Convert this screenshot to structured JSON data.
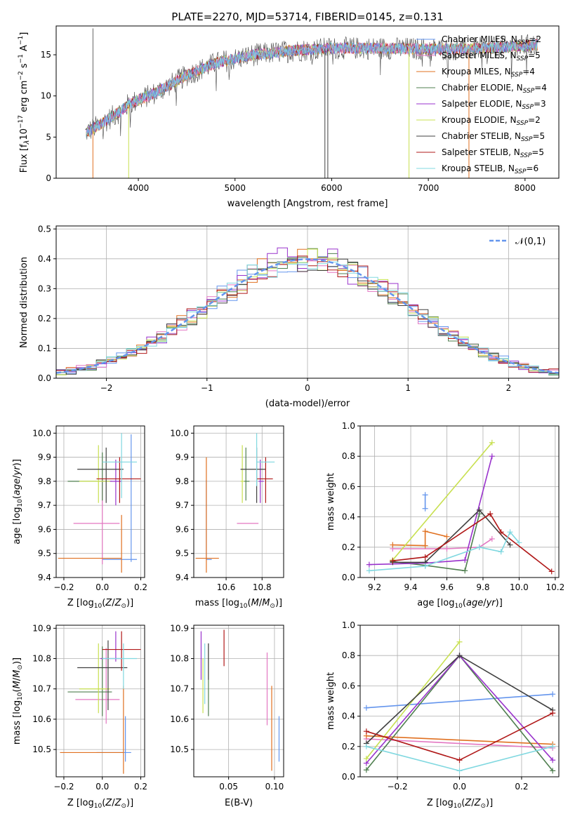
{
  "figure_title": "PLATE=2270, MJD=53714, FIBERID=0145, z=0.131",
  "legend_labels": [
    "Chabrier MILES, N_SSP=2",
    "Salpeter MILES, N_SSP=5",
    "Kroupa MILES, N_SSP=4",
    "Chabrier ELODIE, N_SSP=4",
    "Salpeter ELODIE, N_SSP=3",
    "Kroupa ELODIE, N_SSP=2",
    "Chabrier STELIB, N_SSP=5",
    "Salpeter STELIB, N_SSP=5",
    "Kroupa STELIB, N_SSP=6"
  ],
  "colors": [
    "#6495ed",
    "#e377c2",
    "#e07020",
    "#4f7f4f",
    "#9932cc",
    "#c8e050",
    "#404040",
    "#b01818",
    "#80d8e0"
  ],
  "chart_data": [
    {
      "id": "spectrum",
      "type": "line",
      "xlabel": "wavelength [Angstrom, rest frame]",
      "ylabel": "Flux [f_λ 10^-17 erg cm^-2 s^-1 A^-1]",
      "xlim": [
        3150,
        8350
      ],
      "ylim": [
        0,
        18.5
      ],
      "xticks": [
        4000,
        5000,
        6000,
        7000,
        8000
      ],
      "yticks": [
        0,
        5,
        10,
        15
      ],
      "continuum": {
        "x": [
          3450,
          3600,
          3800,
          3900,
          4000,
          4200,
          4500,
          4800,
          5200,
          5600,
          6000,
          6500,
          7000,
          7400,
          7800,
          8100
        ],
        "y": [
          5.5,
          6.5,
          8.0,
          9.0,
          9.5,
          10.5,
          12.5,
          14.0,
          15.0,
          15.5,
          15.8,
          15.8,
          15.7,
          15.7,
          15.9,
          16.2
        ]
      },
      "vertical_drops": [
        {
          "x": 3530,
          "series": 2
        },
        {
          "x": 3900,
          "series": 5
        },
        {
          "x": 6800,
          "series": 5
        },
        {
          "x": 7420,
          "series": 2
        },
        {
          "x": 5930,
          "series": 6
        },
        {
          "x": 5960,
          "series": 6
        }
      ],
      "spike": {
        "x": 3530,
        "y": 18.2
      },
      "legend": "upper-right"
    },
    {
      "id": "residual-histogram",
      "type": "line",
      "xlabel": "(data-model)/error",
      "ylabel": "Normed distribution",
      "xlim": [
        -2.5,
        2.5
      ],
      "ylim": [
        0,
        0.51
      ],
      "xticks": [
        -2,
        -1,
        0,
        1,
        2
      ],
      "yticks": [
        0.0,
        0.1,
        0.2,
        0.3,
        0.4,
        0.5
      ],
      "bin_width": 0.1,
      "grid": true,
      "legend_entries": [
        "𝒩(0,1)"
      ],
      "legend": "upper-right"
    },
    {
      "id": "age-vs-metallicity",
      "type": "scatter",
      "xlabel": "Z [log10(Z/Z⊙)]",
      "ylabel": "age [log10(age/yr)]",
      "xlim": [
        -0.24,
        0.22
      ],
      "ylim": [
        9.4,
        10.03
      ],
      "xticks": [
        -0.2,
        0.0,
        0.2
      ],
      "yticks": [
        9.4,
        9.5,
        9.6,
        9.7,
        9.8,
        9.9,
        10.0
      ],
      "points": [
        {
          "x": 0.15,
          "y": 9.475,
          "xerr": [
            0.15,
            0.03
          ],
          "yerr": [
            0.01,
            0.52
          ],
          "series": 0
        },
        {
          "x": 0.0,
          "y": 9.625,
          "xerr": [
            0.15,
            0.09
          ],
          "yerr": [
            0.17,
            0.18
          ],
          "series": 1
        },
        {
          "x": 0.1,
          "y": 9.48,
          "xerr": [
            0.33,
            0.0
          ],
          "yerr": [
            0.06,
            0.18
          ],
          "series": 2
        },
        {
          "x": 0.0,
          "y": 9.8,
          "xerr": [
            0.18,
            0.05
          ],
          "yerr": [
            0.08,
            0.12
          ],
          "series": 3
        },
        {
          "x": 0.07,
          "y": 9.8,
          "xerr": [
            0.08,
            0.03
          ],
          "yerr": [
            0.1,
            0.09
          ],
          "series": 4
        },
        {
          "x": -0.02,
          "y": 9.8,
          "xerr": [
            0.1,
            0.06
          ],
          "yerr": [
            0.09,
            0.15
          ],
          "series": 5
        },
        {
          "x": 0.02,
          "y": 9.85,
          "xerr": [
            0.15,
            0.09
          ],
          "yerr": [
            0.14,
            0.09
          ],
          "series": 6
        },
        {
          "x": 0.09,
          "y": 9.81,
          "xerr": [
            0.12,
            0.11
          ],
          "yerr": [
            0.1,
            0.09
          ],
          "series": 7
        },
        {
          "x": 0.1,
          "y": 9.88,
          "xerr": [
            0.1,
            0.08
          ],
          "yerr": [
            0.15,
            0.12
          ],
          "series": 8
        }
      ],
      "grid": true
    },
    {
      "id": "age-vs-mass",
      "type": "scatter",
      "xlabel": "mass [log10(M/M⊙)]",
      "ylabel": "",
      "xlim": [
        10.42,
        10.92
      ],
      "ylim": [
        9.4,
        10.03
      ],
      "xticks": [
        10.6,
        10.8
      ],
      "yticks": [
        9.4,
        9.5,
        9.6,
        9.7,
        9.8,
        9.9,
        10.0
      ],
      "points": [
        {
          "x": 10.49,
          "y": 9.475,
          "xerr": [
            0.0,
            0.03
          ],
          "yerr": [
            0.0,
            0.33
          ],
          "series": 0
        },
        {
          "x": 10.71,
          "y": 9.625,
          "xerr": [
            0.05,
            0.07
          ],
          "yerr": [
            0.0,
            0.0
          ],
          "series": 1
        },
        {
          "x": 10.49,
          "y": 9.48,
          "xerr": [
            0.06,
            0.07
          ],
          "yerr": [
            0.06,
            0.42
          ],
          "series": 2
        },
        {
          "x": 10.71,
          "y": 9.8,
          "xerr": [
            0.01,
            0.02
          ],
          "yerr": [
            0.08,
            0.14
          ],
          "series": 3
        },
        {
          "x": 10.79,
          "y": 9.8,
          "xerr": [
            0.01,
            0.02
          ],
          "yerr": [
            0.09,
            0.09
          ],
          "series": 4
        },
        {
          "x": 10.69,
          "y": 9.8,
          "xerr": [
            0.01,
            0.01
          ],
          "yerr": [
            0.09,
            0.15
          ],
          "series": 5
        },
        {
          "x": 10.77,
          "y": 9.85,
          "xerr": [
            0.09,
            0.05
          ],
          "yerr": [
            0.14,
            0.09
          ],
          "series": 6
        },
        {
          "x": 10.82,
          "y": 9.81,
          "xerr": [
            0.05,
            0.04
          ],
          "yerr": [
            0.1,
            0.09
          ],
          "series": 7
        },
        {
          "x": 10.77,
          "y": 9.88,
          "xerr": [
            0.0,
            0.1
          ],
          "yerr": [
            0.1,
            0.12
          ],
          "series": 8
        }
      ],
      "grid": true
    },
    {
      "id": "mass-weight-vs-age",
      "type": "line",
      "xlabel": "age [log10(age/yr)]",
      "ylabel": "mass weight",
      "xlim": [
        9.12,
        10.22
      ],
      "ylim": [
        0,
        1.0
      ],
      "xticks": [
        9.2,
        9.4,
        9.6,
        9.8,
        10.0,
        10.2
      ],
      "yticks": [
        0.0,
        0.2,
        0.4,
        0.6,
        0.8,
        1.0
      ],
      "series": [
        {
          "x": [
            9.48,
            9.48
          ],
          "y": [
            0.455,
            0.545
          ],
          "series": 0
        },
        {
          "x": [
            9.3,
            9.6,
            9.78,
            9.85
          ],
          "y": [
            0.19,
            0.19,
            0.2,
            0.255
          ],
          "series": 1
        },
        {
          "x": [
            9.3,
            9.48,
            9.48,
            9.6
          ],
          "y": [
            0.215,
            0.21,
            0.305,
            0.27
          ],
          "series": 2
        },
        {
          "x": [
            9.3,
            9.48,
            9.7,
            9.78
          ],
          "y": [
            0.105,
            0.08,
            0.045,
            0.42
          ],
          "series": 3
        },
        {
          "x": [
            9.17,
            9.48,
            9.7,
            9.85
          ],
          "y": [
            0.085,
            0.095,
            0.115,
            0.8
          ],
          "series": 4
        },
        {
          "x": [
            9.3,
            9.85
          ],
          "y": [
            0.115,
            0.89
          ],
          "series": 5
        },
        {
          "x": [
            9.3,
            9.48,
            9.78,
            9.95
          ],
          "y": [
            0.1,
            0.1,
            0.445,
            0.215
          ],
          "series": 6
        },
        {
          "x": [
            9.3,
            9.48,
            9.84,
            9.9,
            10.18
          ],
          "y": [
            0.11,
            0.135,
            0.42,
            0.3,
            0.04
          ],
          "series": 7
        },
        {
          "x": [
            9.17,
            9.48,
            9.78,
            9.9,
            9.95,
            10.0
          ],
          "y": [
            0.045,
            0.075,
            0.2,
            0.17,
            0.3,
            0.23
          ],
          "series": 8
        }
      ],
      "grid": true
    },
    {
      "id": "mass-vs-metallicity",
      "type": "scatter",
      "xlabel": "Z [log10(Z/Z⊙)]",
      "ylabel": "mass [log10(M/M⊙)]",
      "xlim": [
        -0.24,
        0.22
      ],
      "ylim": [
        10.41,
        10.91
      ],
      "xticks": [
        -0.2,
        0.0,
        0.2
      ],
      "yticks": [
        10.5,
        10.6,
        10.7,
        10.8,
        10.9
      ],
      "points": [
        {
          "x": 0.12,
          "y": 10.49,
          "xerr": [
            0.15,
            0.03
          ],
          "yerr": [
            0.03,
            0.12
          ],
          "series": 0
        },
        {
          "x": 0.02,
          "y": 10.665,
          "xerr": [
            0.16,
            0.07
          ],
          "yerr": [
            0.08,
            0.17
          ],
          "series": 1
        },
        {
          "x": 0.11,
          "y": 10.49,
          "xerr": [
            0.33,
            0.0
          ],
          "yerr": [
            0.07,
            0.22
          ],
          "series": 2
        },
        {
          "x": 0.0,
          "y": 10.69,
          "xerr": [
            0.18,
            0.05
          ],
          "yerr": [
            0.08,
            0.15
          ],
          "series": 3
        },
        {
          "x": 0.07,
          "y": 10.8,
          "xerr": [
            0.08,
            0.03
          ],
          "yerr": [
            0.01,
            0.09
          ],
          "series": 4
        },
        {
          "x": -0.02,
          "y": 10.7,
          "xerr": [
            0.1,
            0.06
          ],
          "yerr": [
            0.08,
            0.15
          ],
          "series": 5
        },
        {
          "x": 0.03,
          "y": 10.77,
          "xerr": [
            0.16,
            0.1
          ],
          "yerr": [
            0.14,
            0.09
          ],
          "series": 6
        },
        {
          "x": 0.1,
          "y": 10.83,
          "xerr": [
            0.1,
            0.1
          ],
          "yerr": [
            0.07,
            0.06
          ],
          "series": 7
        },
        {
          "x": 0.11,
          "y": 10.8,
          "xerr": [
            0.11,
            0.07
          ],
          "yerr": [
            0.1,
            0.05
          ],
          "series": 8
        }
      ],
      "grid": true
    },
    {
      "id": "mass-vs-extinction",
      "type": "scatter",
      "xlabel": "E(B-V)",
      "ylabel": "",
      "xlim": [
        0.012,
        0.11
      ],
      "ylim": [
        10.41,
        10.91
      ],
      "xticks": [
        0.05,
        0.1
      ],
      "yticks": [
        10.5,
        10.6,
        10.7,
        10.8,
        10.9
      ],
      "points": [
        {
          "x": 0.105,
          "y": 10.53,
          "yerr": [
            0.07,
            0.08
          ],
          "series": 0
        },
        {
          "x": 0.092,
          "y": 10.7,
          "yerr": [
            0.12,
            0.12
          ],
          "series": 1
        },
        {
          "x": 0.097,
          "y": 10.57,
          "yerr": [
            0.14,
            0.14
          ],
          "series": 2
        },
        {
          "x": 0.028,
          "y": 10.73,
          "yerr": [
            0.12,
            0.12
          ],
          "series": 3
        },
        {
          "x": 0.02,
          "y": 10.81,
          "yerr": [
            0.08,
            0.08
          ],
          "series": 4
        },
        {
          "x": 0.022,
          "y": 10.71,
          "yerr": [
            0.09,
            0.09
          ],
          "series": 5
        },
        {
          "x": 0.028,
          "y": 10.79,
          "yerr": [
            0.06,
            0.06
          ],
          "series": 6
        },
        {
          "x": 0.045,
          "y": 10.835,
          "yerr": [
            0.06,
            0.06
          ],
          "series": 7
        },
        {
          "x": 0.024,
          "y": 10.75,
          "yerr": [
            0.1,
            0.1
          ],
          "series": 8
        }
      ],
      "grid": true
    },
    {
      "id": "mass-weight-vs-metallicity",
      "type": "line",
      "xlabel": "Z [log10(Z/Z⊙)]",
      "ylabel": "mass weight",
      "xlim": [
        -0.32,
        0.32
      ],
      "ylim": [
        0,
        1.0
      ],
      "xticks": [
        -0.2,
        0.0,
        0.2
      ],
      "yticks": [
        0.0,
        0.2,
        0.4,
        0.6,
        0.8,
        1.0
      ],
      "series": [
        {
          "x": [
            -0.3,
            0.3
          ],
          "y": [
            0.455,
            0.545
          ],
          "series": 0
        },
        {
          "x": [
            -0.3,
            0.3
          ],
          "y": [
            0.25,
            0.19
          ],
          "series": 1
        },
        {
          "x": [
            -0.3,
            0.3
          ],
          "y": [
            0.27,
            0.215
          ],
          "series": 2
        },
        {
          "x": [
            -0.3,
            0.0,
            0.3
          ],
          "y": [
            0.045,
            0.8,
            0.04
          ],
          "series": 3
        },
        {
          "x": [
            -0.3,
            0.0,
            0.3
          ],
          "y": [
            0.09,
            0.8,
            0.11
          ],
          "series": 4
        },
        {
          "x": [
            -0.3,
            0.0
          ],
          "y": [
            0.12,
            0.89
          ],
          "series": 5
        },
        {
          "x": [
            -0.3,
            0.0,
            0.3
          ],
          "y": [
            0.22,
            0.8,
            0.44
          ],
          "series": 6
        },
        {
          "x": [
            -0.3,
            0.0,
            0.3
          ],
          "y": [
            0.3,
            0.11,
            0.42
          ],
          "series": 7
        },
        {
          "x": [
            -0.3,
            0.0,
            0.3
          ],
          "y": [
            0.2,
            0.04,
            0.2
          ],
          "series": 8
        }
      ],
      "grid": true
    }
  ]
}
